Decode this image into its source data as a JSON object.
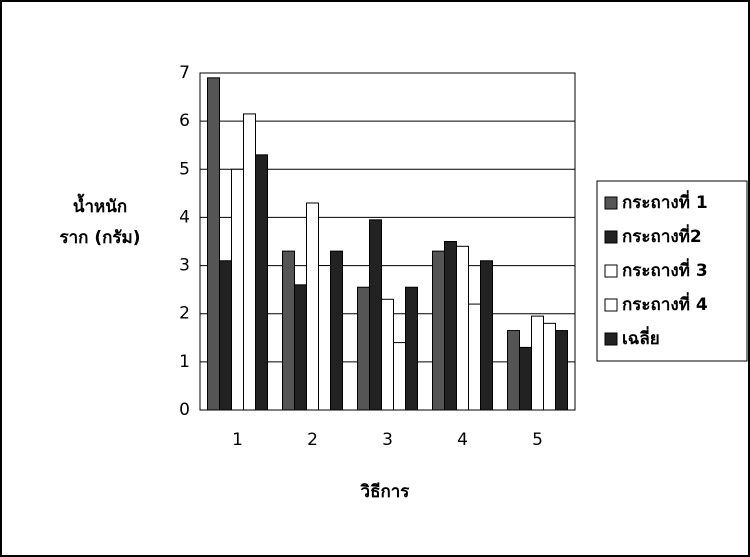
{
  "chart_data": {
    "type": "bar",
    "xlabel": "วิธีการ",
    "ylabel": [
      "น้ำหนัก",
      "ราก (กรัม)"
    ],
    "categories": [
      "1",
      "2",
      "3",
      "4",
      "5"
    ],
    "series": [
      {
        "name": "กระถางที่ 1",
        "color": "#555555",
        "values": [
          6.9,
          3.3,
          2.55,
          3.3,
          1.65
        ]
      },
      {
        "name": "กระถางที่2",
        "color": "#222222",
        "values": [
          3.1,
          2.6,
          3.95,
          3.5,
          1.3
        ]
      },
      {
        "name": "กระถางที่ 3",
        "color": "#ffffff",
        "values": [
          5.0,
          4.3,
          2.3,
          3.4,
          1.95
        ]
      },
      {
        "name": "กระถางที่ 4",
        "color": "#ffffff",
        "values": [
          6.15,
          3.0,
          1.4,
          2.2,
          1.8
        ]
      },
      {
        "name": "เฉลี่ย",
        "color": "#222222",
        "values": [
          5.3,
          3.3,
          2.55,
          3.1,
          1.65
        ]
      }
    ],
    "ylim": [
      0,
      7
    ],
    "yticks": [
      0,
      1,
      2,
      3,
      4,
      5,
      6,
      7
    ],
    "grid": true,
    "legend": "right"
  }
}
